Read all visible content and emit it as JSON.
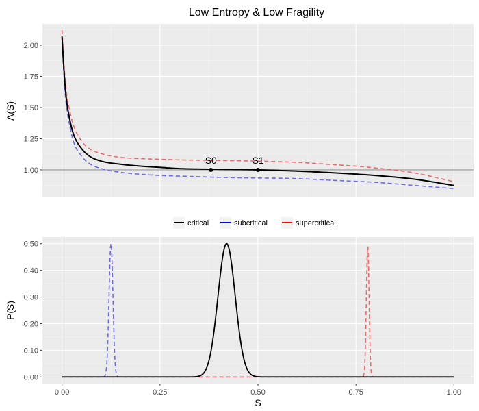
{
  "title": "Low Entropy & Low Fragility",
  "legend": {
    "placement": "middle-center",
    "items": [
      {
        "label": "critical",
        "color": "#000000"
      },
      {
        "label": "subcritical",
        "color": "#0000ff"
      },
      {
        "label": "supercritical",
        "color": "#ff0000"
      }
    ]
  },
  "colors": {
    "panel_bg": "#ebebeb",
    "grid": "#ffffff",
    "critical": "#000000",
    "subcritical": "#6a6af5",
    "supercritical": "#f06a6a",
    "reference_line": "#a6a6a6"
  },
  "chart_data": [
    {
      "type": "line",
      "ylabel": "Λ(S)",
      "xlabel": "",
      "xlim": [
        -0.05,
        1.05
      ],
      "ylim": [
        0.78,
        2.17
      ],
      "yticks": [
        "1.00",
        "1.25",
        "1.50",
        "1.75",
        "2.00"
      ],
      "grid": true,
      "reference_line_y": 1.0,
      "series": [
        {
          "name": "critical",
          "style": "solid",
          "x": [
            0.0,
            0.005,
            0.01,
            0.02,
            0.03,
            0.05,
            0.07,
            0.1,
            0.15,
            0.2,
            0.25,
            0.3,
            0.38,
            0.5,
            0.6,
            0.7,
            0.8,
            0.9,
            1.0
          ],
          "y": [
            2.07,
            1.8,
            1.6,
            1.4,
            1.28,
            1.17,
            1.11,
            1.07,
            1.045,
            1.03,
            1.02,
            1.01,
            1.005,
            1.0,
            0.99,
            0.975,
            0.955,
            0.925,
            0.875
          ]
        },
        {
          "name": "subcritical",
          "style": "dashed",
          "x": [
            0.0,
            0.005,
            0.01,
            0.02,
            0.03,
            0.05,
            0.07,
            0.1,
            0.15,
            0.2,
            0.25,
            0.3,
            0.35,
            0.4,
            0.5,
            0.6,
            0.7,
            0.8,
            0.9,
            1.0
          ],
          "y": [
            2.05,
            1.75,
            1.55,
            1.35,
            1.22,
            1.11,
            1.05,
            1.01,
            0.98,
            0.965,
            0.955,
            0.95,
            0.945,
            0.94,
            0.935,
            0.93,
            0.915,
            0.9,
            0.875,
            0.85
          ]
        },
        {
          "name": "supercritical",
          "style": "dashed",
          "x": [
            0.0,
            0.005,
            0.01,
            0.02,
            0.03,
            0.05,
            0.07,
            0.1,
            0.15,
            0.2,
            0.25,
            0.3,
            0.4,
            0.5,
            0.6,
            0.7,
            0.75,
            0.8,
            0.9,
            1.0
          ],
          "y": [
            2.12,
            1.85,
            1.66,
            1.47,
            1.35,
            1.23,
            1.17,
            1.13,
            1.1,
            1.09,
            1.085,
            1.08,
            1.075,
            1.07,
            1.06,
            1.04,
            1.03,
            1.015,
            0.975,
            0.905
          ]
        }
      ],
      "annotations": [
        {
          "label": "S0",
          "x": 0.38,
          "y": 1.0
        },
        {
          "label": "S1",
          "x": 0.5,
          "y": 1.0
        }
      ]
    },
    {
      "type": "line",
      "ylabel": "P(S)",
      "xlabel": "S",
      "xlim": [
        -0.05,
        1.05
      ],
      "ylim": [
        -0.025,
        0.525
      ],
      "xticks": [
        "0.00",
        "0.25",
        "0.50",
        "0.75",
        "1.00"
      ],
      "yticks": [
        "0.00",
        "0.10",
        "0.20",
        "0.30",
        "0.40",
        "0.50"
      ],
      "grid": true,
      "series": [
        {
          "name": "critical",
          "style": "solid",
          "distribution": "gaussian",
          "peak_x": 0.42,
          "sd": 0.022,
          "peak": 0.5
        },
        {
          "name": "subcritical",
          "style": "dashed",
          "distribution": "gaussian",
          "peak_x": 0.125,
          "sd": 0.005,
          "peak": 0.5
        },
        {
          "name": "supercritical",
          "style": "dashed",
          "distribution": "gaussian",
          "peak_x": 0.78,
          "sd": 0.0035,
          "peak": 0.49
        }
      ]
    }
  ]
}
